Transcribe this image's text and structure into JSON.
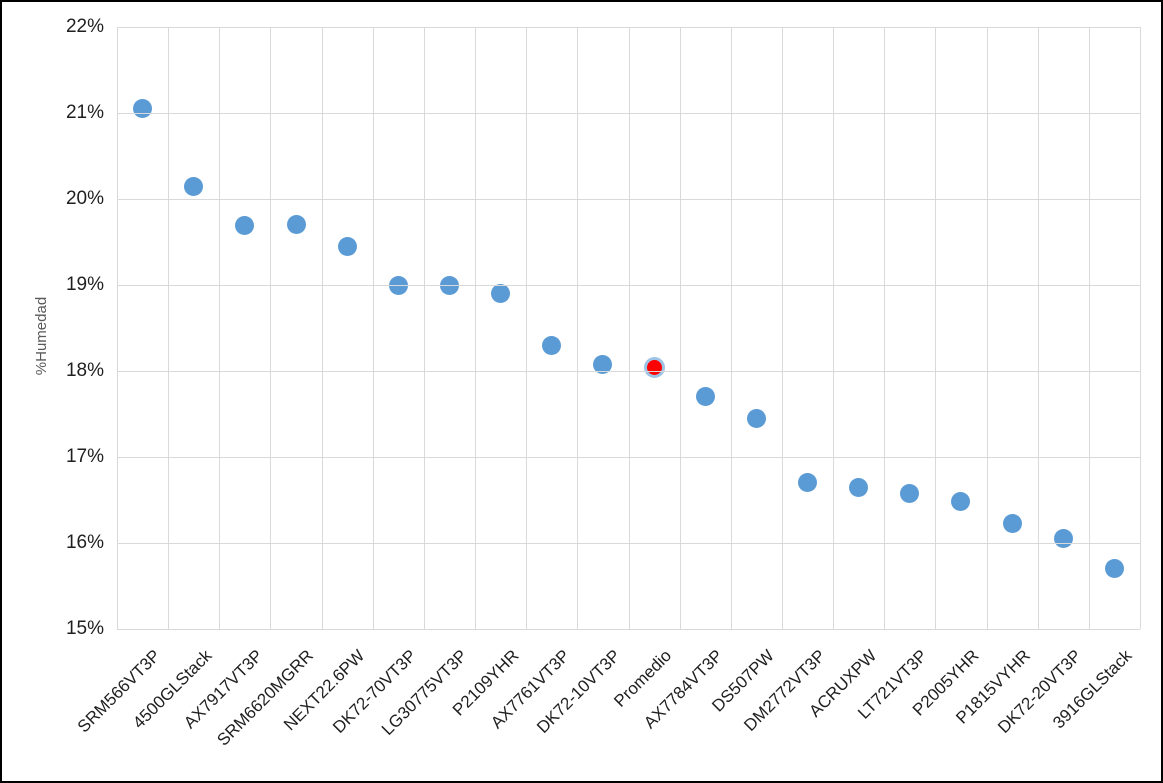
{
  "chart_data": {
    "type": "scatter",
    "ylabel": "%Humedad",
    "categories": [
      "SRM566VT3P",
      "4500GLStack",
      "AX7917VT3P",
      "SRM6620MGRR",
      "NEXT22.6PW",
      "DK72-70VT3P",
      "LG30775VT3P",
      "P2109YHR",
      "AX7761VT3P",
      "DK72-10VT3P",
      "Promedio",
      "AX7784VT3P",
      "DS507PW",
      "DM2772VT3P",
      "ACRUXPW",
      "LT721VT3P",
      "P2005YHR",
      "P1815VYHR",
      "DK72-20VT3P",
      "3916GLStack"
    ],
    "values": [
      21.05,
      20.15,
      19.69,
      19.7,
      19.45,
      19.0,
      19.0,
      18.9,
      18.3,
      18.07,
      18.04,
      17.7,
      17.45,
      16.7,
      16.65,
      16.58,
      16.48,
      16.23,
      16.05,
      15.7
    ],
    "highlight": {
      "category": "Promedio",
      "index": 10,
      "fill": "#ff0000",
      "ring": "#9dc3e6"
    },
    "point_color": "#5b9bd5",
    "ylim": [
      15,
      22
    ],
    "y_tick_labels": [
      "22%",
      "21%",
      "20%",
      "19%",
      "18%",
      "17%",
      "16%",
      "15%"
    ],
    "grid": true,
    "legend": "none"
  },
  "colors": {
    "gridline": "#d9d9d9",
    "tick_text": "#1f1f1f",
    "ylabel_text": "#595959",
    "frame_border": "#000000",
    "background": "#ffffff"
  }
}
